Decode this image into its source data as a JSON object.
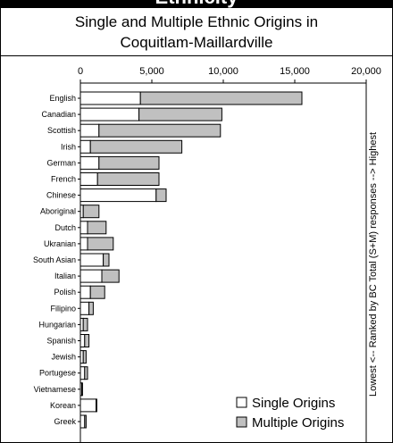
{
  "banner": "Ethnicity",
  "chart_data": {
    "type": "bar",
    "orientation": "horizontal",
    "stacked": true,
    "title_line1": "Single and Multiple Ethnic Origins in",
    "title_line2": "Coquitlam-Maillardville",
    "categories": [
      "English",
      "Canadian",
      "Scottish",
      "Irish",
      "German",
      "French",
      "Chinese",
      "Aboriginal",
      "Dutch",
      "Ukranian",
      "South Asian",
      "Italian",
      "Polish",
      "Filipino",
      "Hungarian",
      "Spanish",
      "Jewish",
      "Portugese",
      "Vietnamese",
      "Korean",
      "Greek"
    ],
    "series": [
      {
        "name": "Single Origins",
        "color": "#ffffff",
        "values": [
          4200,
          4100,
          1300,
          700,
          1300,
          1200,
          5300,
          200,
          500,
          500,
          1600,
          1500,
          700,
          600,
          200,
          300,
          200,
          300,
          100,
          1100,
          300
        ]
      },
      {
        "name": "Multiple Origins",
        "color": "#c0c0c0",
        "values": [
          11300,
          5800,
          8500,
          6400,
          4200,
          4300,
          700,
          1100,
          1300,
          1800,
          400,
          1200,
          1000,
          300,
          300,
          300,
          200,
          200,
          50,
          50,
          100
        ]
      }
    ],
    "xlim": [
      0,
      20000
    ],
    "xticks": [
      "0",
      "5,000",
      "10,000",
      "15,000",
      "20,000"
    ],
    "ylabel": "Lowest <-- Ranked by BC Total (S+M) responses --> Highest",
    "grid": false,
    "legend_position": "bottom-right"
  }
}
